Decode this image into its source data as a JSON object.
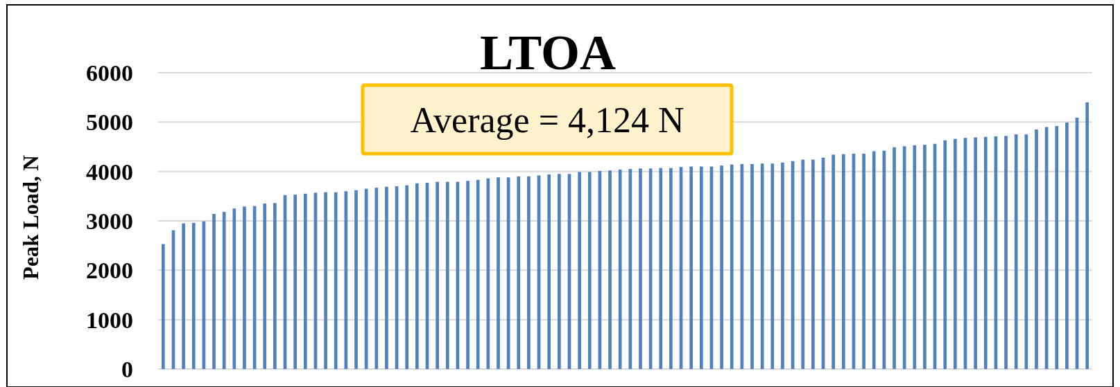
{
  "chart_data": {
    "type": "bar",
    "title": "LTOA",
    "ylabel": "Peak Load, N",
    "annotations": [
      "Average = 4,124 N"
    ],
    "categories": [
      null,
      null,
      null,
      null,
      null,
      null,
      null,
      null,
      null,
      null,
      null,
      null,
      null,
      null,
      null,
      null,
      null,
      null,
      null,
      null,
      null,
      null,
      null,
      null,
      null,
      null,
      null,
      null,
      null,
      null,
      null,
      null,
      null,
      null,
      null,
      null,
      null,
      null,
      null,
      null,
      null,
      null,
      null,
      null,
      null,
      null,
      null,
      null,
      null,
      null,
      null,
      null,
      null,
      null,
      null,
      null,
      null,
      null,
      null,
      null,
      null,
      null,
      null,
      null,
      null,
      null,
      null,
      null,
      null,
      null,
      null,
      null,
      null,
      null,
      null,
      null,
      null,
      null,
      null,
      null,
      null,
      null,
      null,
      null,
      null,
      null,
      null,
      null,
      null,
      null,
      null,
      null
    ],
    "values": [
      2530,
      2810,
      2950,
      2960,
      2990,
      3140,
      3180,
      3250,
      3290,
      3300,
      3350,
      3360,
      3520,
      3530,
      3550,
      3570,
      3580,
      3580,
      3600,
      3620,
      3650,
      3670,
      3690,
      3700,
      3720,
      3760,
      3770,
      3790,
      3790,
      3790,
      3810,
      3830,
      3860,
      3880,
      3880,
      3900,
      3900,
      3920,
      3940,
      3950,
      3950,
      3990,
      3990,
      4010,
      4020,
      4040,
      4050,
      4060,
      4060,
      4070,
      4070,
      4090,
      4100,
      4100,
      4100,
      4120,
      4140,
      4150,
      4150,
      4160,
      4160,
      4180,
      4210,
      4240,
      4240,
      4280,
      4340,
      4350,
      4360,
      4360,
      4410,
      4420,
      4490,
      4510,
      4530,
      4540,
      4560,
      4630,
      4660,
      4680,
      4690,
      4700,
      4710,
      4720,
      4750,
      4750,
      4850,
      4900,
      4920,
      4990,
      5090,
      5400
    ],
    "color": "#4f81bd",
    "ylim": [
      0,
      6000
    ],
    "yticks": [
      0,
      1000,
      2000,
      3000,
      4000,
      5000,
      6000
    ],
    "grid": "y"
  }
}
